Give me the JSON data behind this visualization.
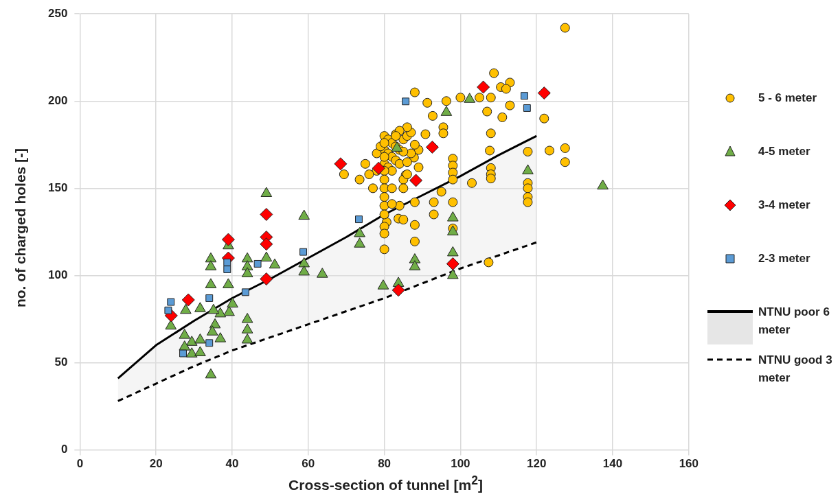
{
  "chart_data": {
    "type": "scatter",
    "xlabel": "Cross-section of tunnel [m$^{2}$]",
    "ylabel": "no. of charged holes [-]",
    "xlim": [
      0,
      160
    ],
    "xticks": [
      0,
      20,
      40,
      60,
      80,
      100,
      120,
      140,
      160
    ],
    "ylim": [
      0,
      250
    ],
    "yticks": [
      0,
      50,
      100,
      150,
      200,
      250
    ],
    "grid": true,
    "legend": "right",
    "series": [
      {
        "name": "5 - 6 meter",
        "color": "#ffc000",
        "marker": "circle",
        "x": [
          108.8,
          88,
          91.3,
          96.3,
          100,
          105,
          108,
          110.6,
          113,
          112,
          107,
          113,
          111,
          122,
          92.7,
          95.5,
          95.5,
          108,
          90.8,
          107.7,
          117.7,
          123.4,
          98,
          98,
          98,
          98,
          108,
          108,
          108,
          103,
          117.7,
          117.7,
          117.7,
          117.7,
          95,
          87.8,
          89,
          85.6,
          88,
          93,
          93,
          98,
          88,
          88,
          83.7,
          80.6,
          107.4,
          98,
          127.5,
          127.5,
          127.5,
          80,
          81,
          82,
          83,
          84,
          80,
          81,
          82,
          83,
          84,
          80,
          81,
          82,
          85,
          86,
          87,
          86,
          83,
          84,
          78,
          79,
          80,
          80,
          80,
          80,
          80,
          80,
          80,
          80,
          80,
          80,
          80,
          78,
          77,
          76,
          73.5,
          69.4,
          75,
          82,
          85,
          85,
          86,
          87,
          88,
          84,
          85,
          86,
          89,
          82,
          83,
          85
        ],
        "values": [
          216,
          205,
          199,
          200,
          202,
          202,
          202,
          208,
          210.6,
          207,
          194,
          197.5,
          190.7,
          190,
          191.5,
          185,
          181.5,
          181.5,
          181,
          171.6,
          171,
          171.6,
          167,
          163,
          159,
          155,
          161.6,
          158,
          155.6,
          153,
          153,
          150,
          145,
          142,
          148,
          167.6,
          172,
          157.6,
          142,
          142,
          135,
          142,
          129,
          119.5,
          132.6,
          130.6,
          107.5,
          127,
          242,
          173,
          165,
          180,
          178,
          176,
          174,
          172,
          172,
          170,
          168,
          166,
          164,
          164,
          162,
          160,
          178,
          180,
          182,
          185,
          181,
          183,
          170,
          174,
          176,
          168,
          160,
          155,
          150,
          145,
          140,
          135,
          128,
          124,
          115,
          160,
          150,
          158,
          155,
          158,
          164,
          150,
          155,
          150,
          165,
          170,
          175,
          140,
          132,
          158,
          162,
          141,
          180,
          171
        ]
      },
      {
        "name": "4-5 meter",
        "color": "#70ad47",
        "marker": "triangle",
        "x": [
          49,
          58.9,
          34.4,
          34.4,
          39,
          44,
          44,
          44,
          49,
          51.2,
          58.9,
          58.9,
          63.7,
          73.5,
          73.5,
          34.4,
          39,
          27.8,
          31.6,
          23.9,
          40.1,
          39.2,
          36.9,
          35.1,
          35.5,
          34.8,
          36.9,
          44,
          44,
          44,
          27.5,
          29.4,
          31.6,
          27.5,
          29.4,
          31.6,
          34.4,
          83.3,
          96.3,
          102.4,
          117.7,
          98,
          98,
          98,
          98,
          88,
          88,
          79.7,
          83.7,
          137.4
        ],
        "values": [
          147,
          134,
          109.5,
          105,
          117,
          109.5,
          105,
          101,
          110,
          106,
          106.7,
          102,
          100.7,
          124,
          118,
          94.7,
          94.7,
          80,
          81,
          71,
          83.6,
          78.8,
          78,
          80,
          71.7,
          67.6,
          63.7,
          74.8,
          68.8,
          63,
          65.7,
          61.7,
          63,
          59,
          55,
          55.7,
          43,
          173,
          193.5,
          201,
          160,
          133,
          125,
          113,
          100,
          109,
          105,
          94,
          95.5,
          151.3
        ]
      },
      {
        "name": "3-4 meter",
        "color": "#ff0000",
        "marker": "diamond",
        "x": [
          24,
          28.5,
          39,
          39,
          49,
          49,
          49,
          49,
          68.5,
          78.5,
          83.7,
          88.3,
          92.6,
          98,
          106,
          122
        ],
        "values": [
          77,
          86,
          120.6,
          110,
          135,
          122,
          118,
          98,
          164,
          161.5,
          91.6,
          154.5,
          173.6,
          106.7,
          208,
          204.6
        ]
      },
      {
        "name": "2-3 meter",
        "color": "#5b9bd5",
        "marker": "square",
        "x": [
          23.9,
          23.2,
          34,
          38.7,
          38.7,
          46.7,
          43.5,
          34,
          27.1,
          58.7,
          73.3,
          85.6,
          116.8,
          117.5
        ],
        "values": [
          84.8,
          80,
          87,
          107.5,
          103.5,
          106.7,
          90.4,
          61.3,
          55.3,
          113.5,
          132.2,
          199.8,
          203,
          196
        ]
      },
      {
        "name": "NTNU poor 6 meter",
        "type": "line",
        "color": "#000000",
        "marker": "none",
        "line_style": "solid",
        "x": [
          10,
          20,
          30,
          40,
          50,
          60,
          70,
          80,
          90,
          100,
          110,
          120
        ],
        "values": [
          41,
          60,
          74,
          87,
          98,
          110,
          122,
          135,
          146,
          157,
          169,
          180
        ],
        "upper": [
          41,
          60,
          74,
          87,
          98,
          110,
          122,
          135,
          146,
          157,
          169,
          180
        ],
        "lower": [
          28,
          38,
          48,
          57,
          64.5,
          72,
          79.5,
          87,
          95.5,
          104,
          111.5,
          119
        ]
      },
      {
        "name": "NTNU good 3 meter",
        "type": "line",
        "color": "#000000",
        "marker": "none",
        "line_style": "dashed",
        "x": [
          10,
          20,
          30,
          40,
          50,
          60,
          70,
          80,
          90,
          100,
          110,
          120
        ],
        "values": [
          28,
          38,
          48,
          57,
          64.5,
          72,
          79.5,
          87,
          95.5,
          104,
          111.5,
          119
        ]
      }
    ]
  }
}
